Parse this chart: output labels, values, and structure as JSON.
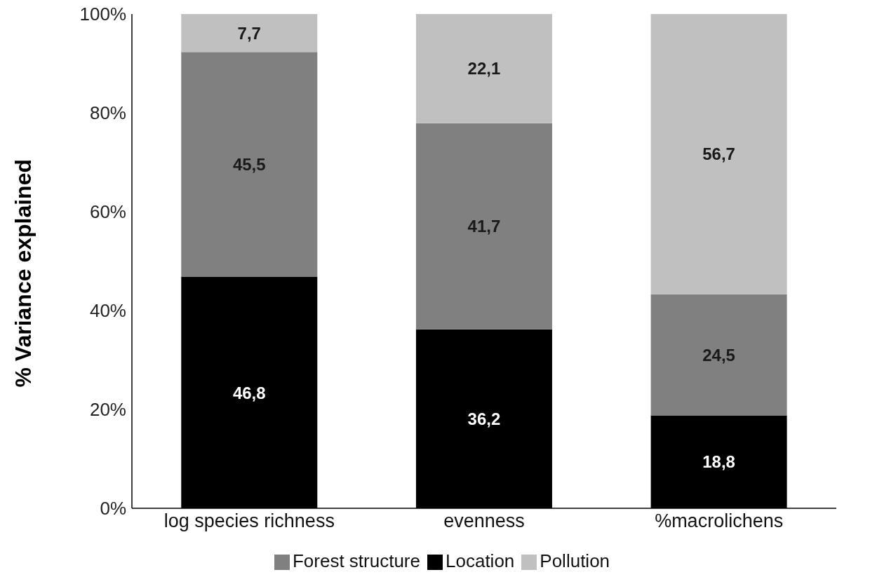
{
  "chart_data": {
    "type": "bar",
    "stacked": true,
    "ylabel": "% Variance explained",
    "categories": [
      "log species richness",
      "evenness",
      "%macrolichens"
    ],
    "series": [
      {
        "name": "Location",
        "color": "#000000",
        "values": [
          46.8,
          36.2,
          18.8
        ],
        "value_labels": [
          "46,8",
          "36,2",
          "18,8"
        ]
      },
      {
        "name": "Forest structure",
        "color": "#808080",
        "values": [
          45.5,
          41.7,
          24.5
        ],
        "value_labels": [
          "45,5",
          "41,7",
          "24,5"
        ]
      },
      {
        "name": "Pollution",
        "color": "#c0c0c0",
        "values": [
          7.7,
          22.1,
          56.7
        ],
        "value_labels": [
          "7,7",
          "22,1",
          "56,7"
        ]
      }
    ],
    "ylim": [
      0,
      100
    ],
    "yticks": [
      {
        "value": 0,
        "label": "0%"
      },
      {
        "value": 20,
        "label": "20%"
      },
      {
        "value": 40,
        "label": "40%"
      },
      {
        "value": 60,
        "label": "60%"
      },
      {
        "value": 80,
        "label": "80%"
      },
      {
        "value": 100,
        "label": "100%"
      }
    ],
    "grid": false,
    "legend": "bottom"
  }
}
